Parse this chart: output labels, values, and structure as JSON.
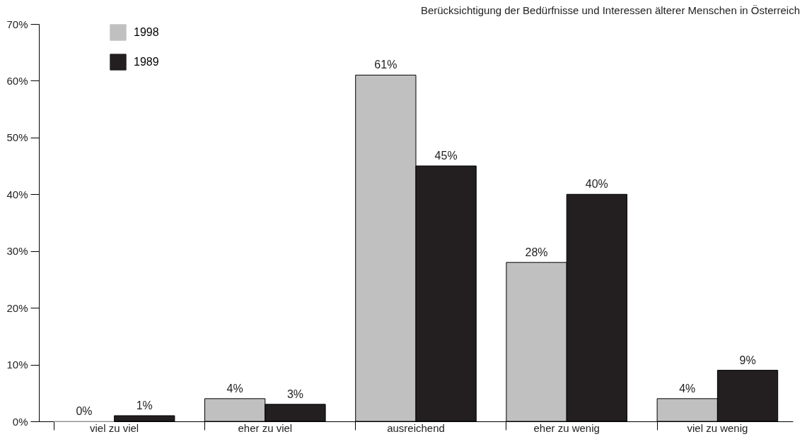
{
  "chart_data": {
    "type": "bar",
    "title": "Berücksichtigung der Bedürfnisse und Interessen älterer Menschen in Österreich",
    "categories": [
      "viel zu viel",
      "eher zu viel",
      "ausreichend",
      "eher zu wenig",
      "viel zu wenig"
    ],
    "series": [
      {
        "name": "1998",
        "color": "#c0c0c0",
        "values": [
          0,
          4,
          61,
          28,
          4
        ],
        "value_labels": [
          "0%",
          "4%",
          "61%",
          "28%",
          "4%"
        ]
      },
      {
        "name": "1989",
        "color": "#231f20",
        "values": [
          1,
          3,
          45,
          40,
          9
        ],
        "value_labels": [
          "1%",
          "3%",
          "45%",
          "40%",
          "9%"
        ]
      }
    ],
    "ylim": [
      0,
      70
    ],
    "yticks": [
      {
        "value": 0,
        "label": "0%"
      },
      {
        "value": 10,
        "label": "10%"
      },
      {
        "value": 20,
        "label": "20%"
      },
      {
        "value": 30,
        "label": "30%"
      },
      {
        "value": 40,
        "label": "40%"
      },
      {
        "value": 50,
        "label": "50%"
      },
      {
        "value": 60,
        "label": "60%"
      },
      {
        "value": 70,
        "label": "70%"
      }
    ],
    "grid": false,
    "legend": "top left"
  }
}
